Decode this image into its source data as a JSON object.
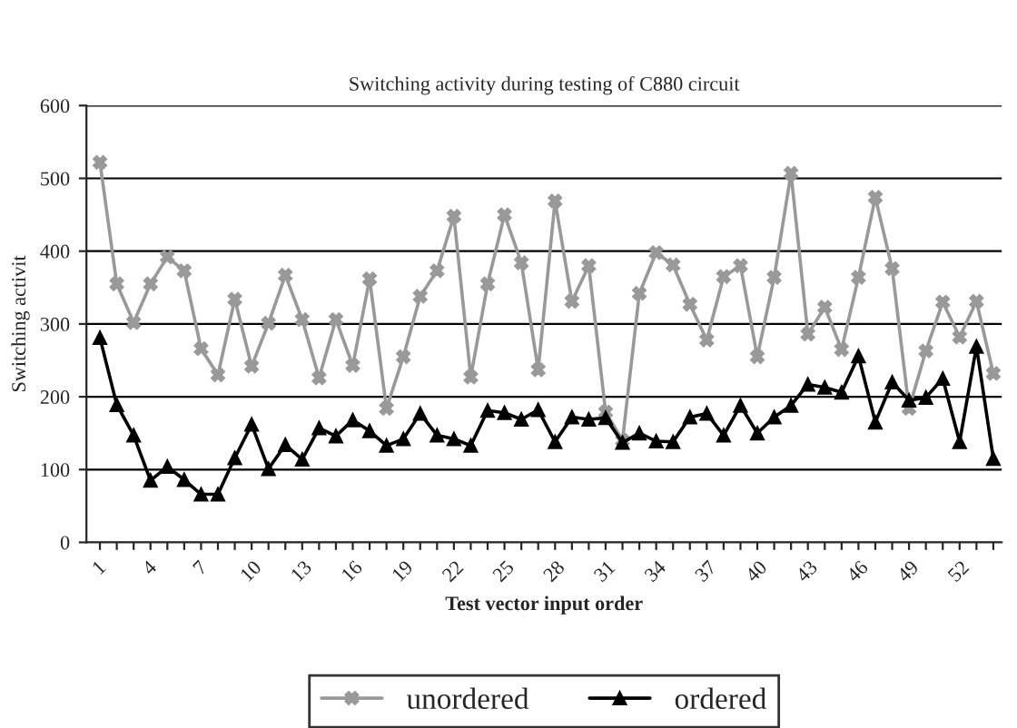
{
  "chart_data": {
    "type": "line",
    "title": "Switching activity during testing of C880 circuit",
    "xlabel": "Test vector input order",
    "ylabel": "Switching activit",
    "categories": [
      "1",
      null,
      null,
      "4",
      null,
      null,
      "7",
      null,
      null,
      "10",
      null,
      null,
      "13",
      null,
      null,
      "16",
      null,
      null,
      "19",
      null,
      null,
      "22",
      null,
      null,
      "25",
      null,
      null,
      "28",
      null,
      null,
      "31",
      null,
      null,
      "34",
      null,
      null,
      "37",
      null,
      null,
      "40",
      null,
      null,
      "43",
      null,
      null,
      "46",
      null,
      null,
      "49",
      null,
      null,
      "52",
      null,
      null
    ],
    "ylim": [
      0,
      600
    ],
    "yticks": [
      0,
      100,
      200,
      300,
      400,
      500,
      600
    ],
    "grid": "y",
    "legend": "bottom",
    "series": [
      {
        "name": "unordered",
        "color": "#999999",
        "marker": "cross",
        "values": [
          522,
          355,
          302,
          355,
          392,
          373,
          266,
          230,
          334,
          242,
          301,
          367,
          306,
          226,
          306,
          243,
          362,
          184,
          255,
          338,
          373,
          448,
          227,
          355,
          450,
          384,
          237,
          469,
          331,
          380,
          179,
          140,
          342,
          398,
          381,
          327,
          278,
          365,
          380,
          255,
          364,
          507,
          286,
          323,
          265,
          364,
          474,
          376,
          184,
          263,
          330,
          282,
          331,
          232
        ]
      },
      {
        "name": "ordered",
        "color": "#000000",
        "marker": "triangle",
        "values": [
          281,
          189,
          147,
          85,
          104,
          86,
          66,
          66,
          116,
          162,
          101,
          134,
          114,
          157,
          146,
          168,
          153,
          133,
          142,
          177,
          147,
          142,
          133,
          181,
          178,
          169,
          182,
          138,
          172,
          169,
          171,
          137,
          150,
          139,
          138,
          172,
          177,
          147,
          188,
          150,
          172,
          188,
          217,
          213,
          206,
          256,
          165,
          220,
          195,
          199,
          225,
          138,
          269,
          115
        ]
      }
    ]
  }
}
